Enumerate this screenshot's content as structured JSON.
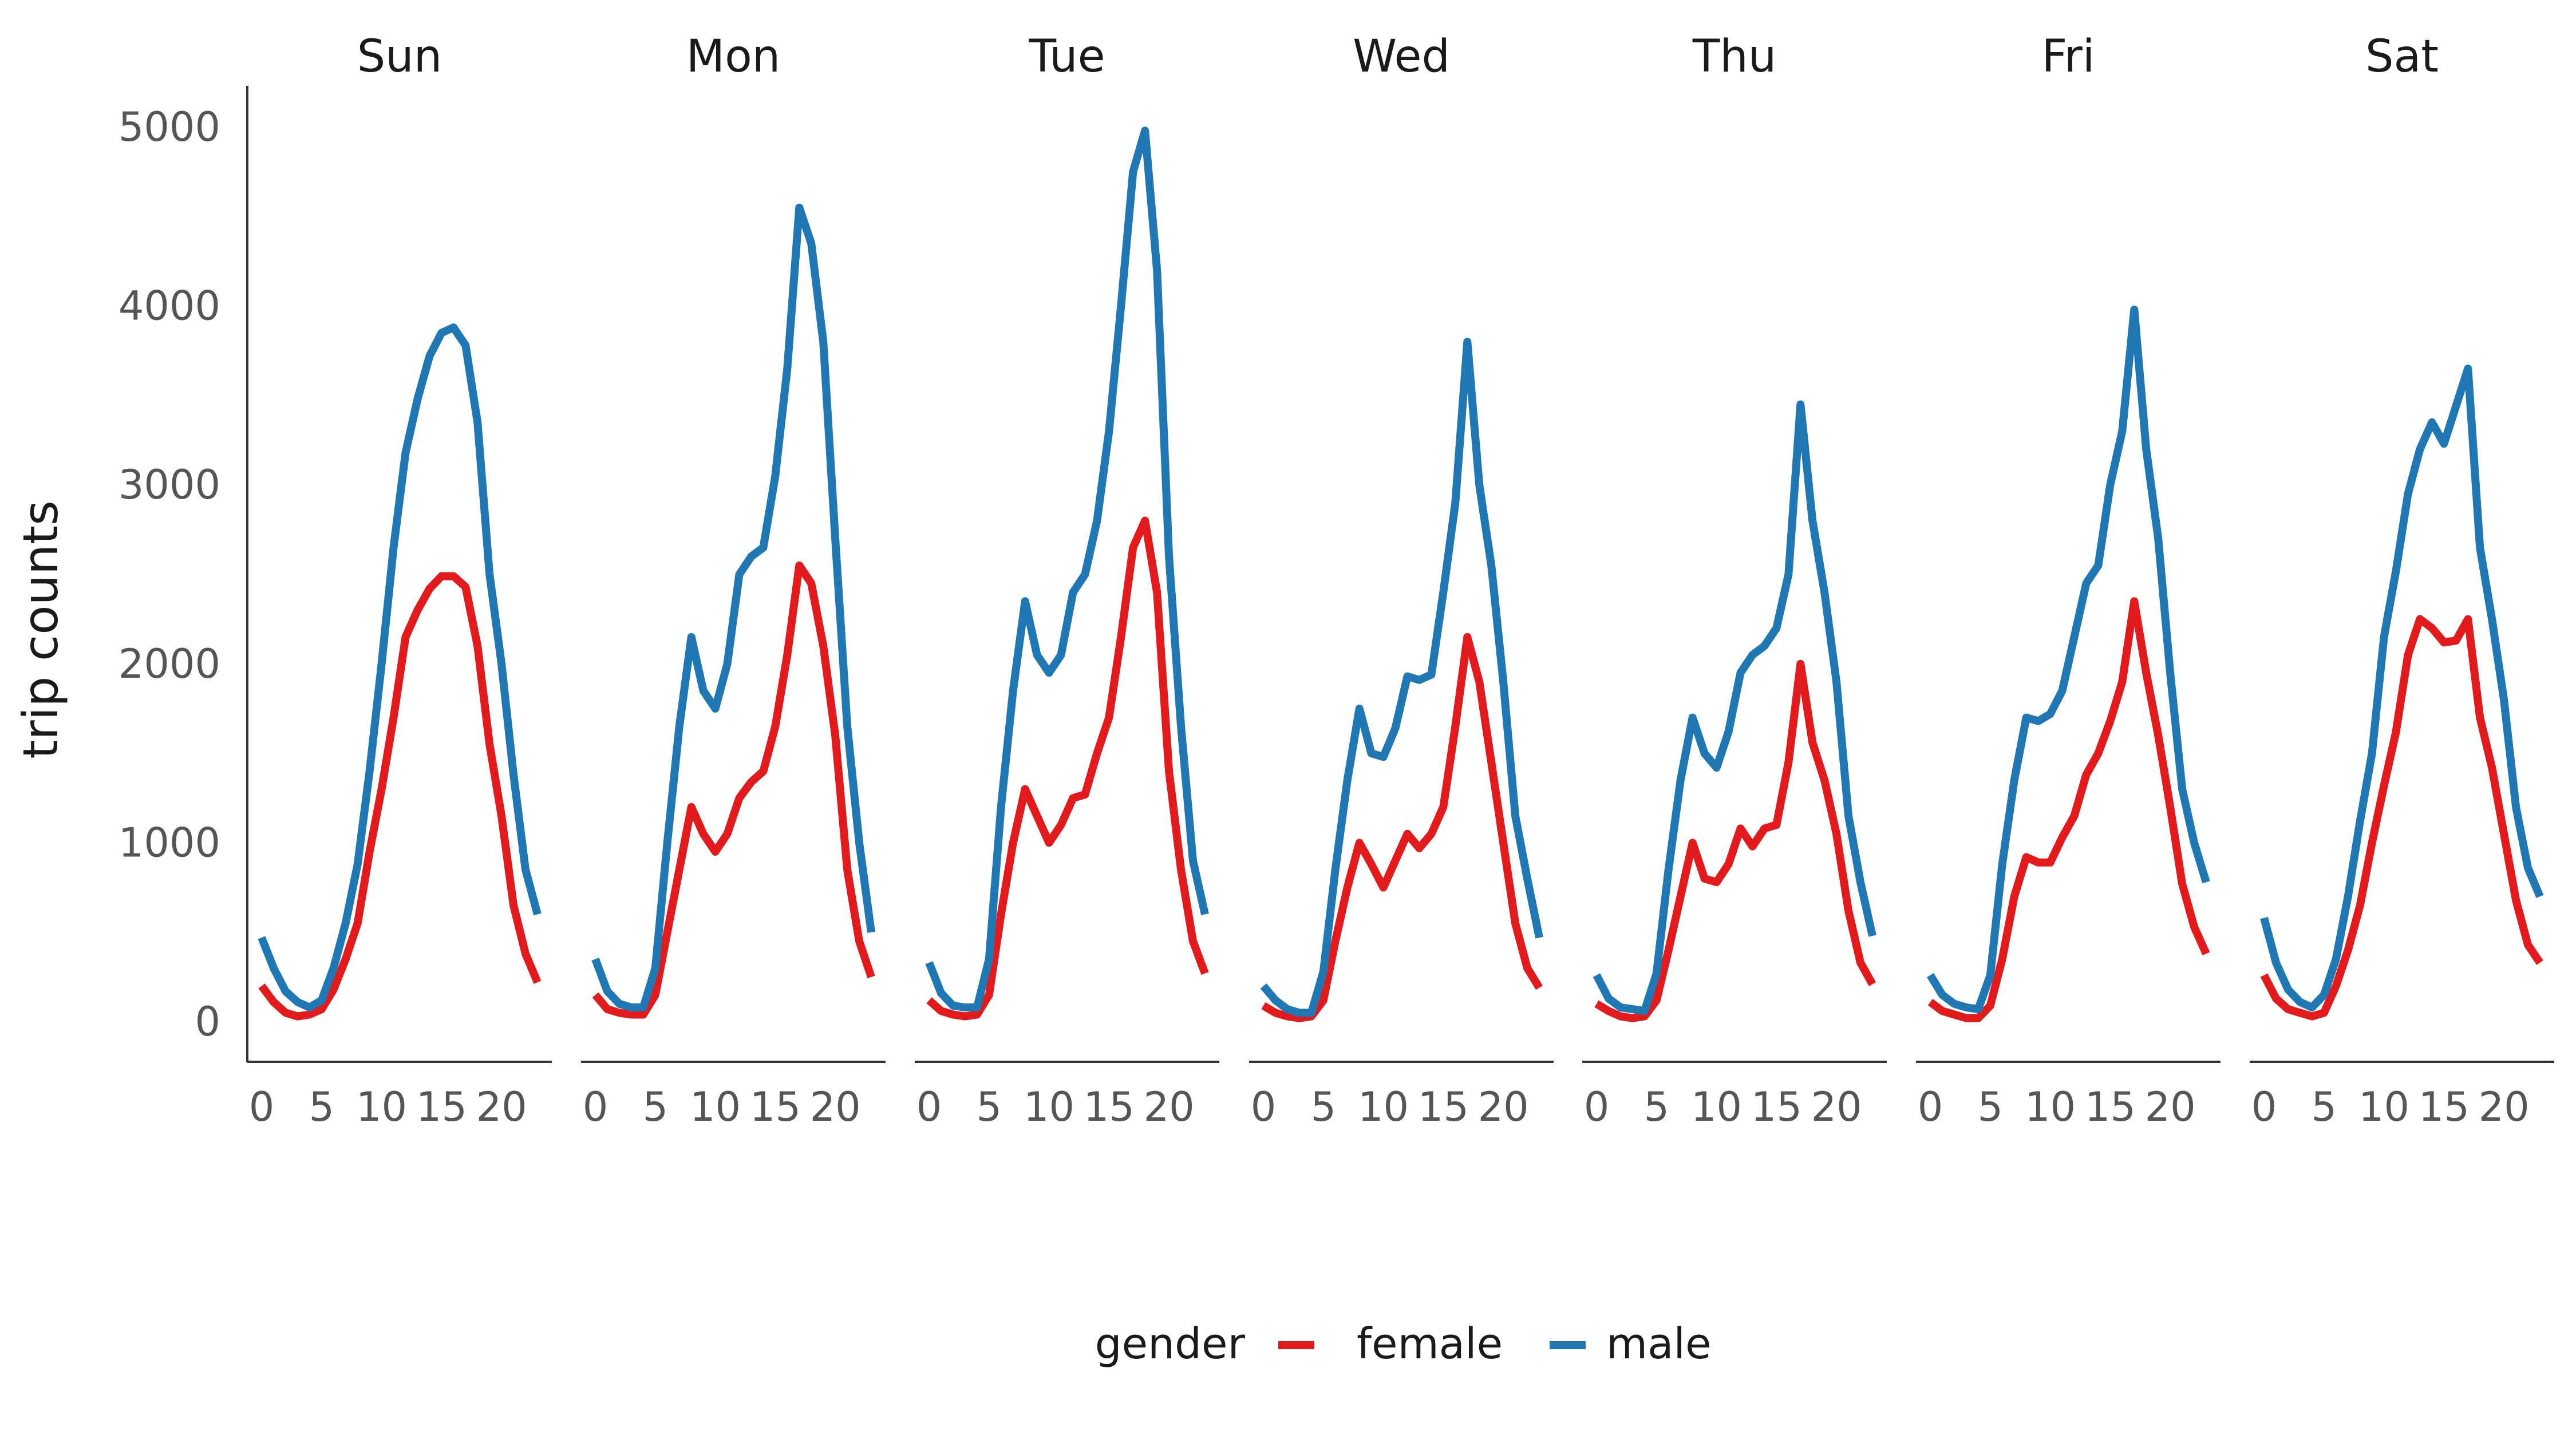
{
  "colors": {
    "female": "#e31a1c",
    "male": "#1f78b4"
  },
  "legend": {
    "title": "gender",
    "placement": "bottom"
  },
  "chart_data": {
    "type": "line",
    "ylabel": "trip counts",
    "ylim": [
      0,
      5000
    ],
    "y_ticks": [
      "0",
      "1000",
      "2000",
      "3000",
      "4000",
      "5000"
    ],
    "y_tick_values": [
      0,
      1000,
      2000,
      3000,
      4000,
      5000
    ],
    "x_ticks": [
      "0",
      "5",
      "10",
      "15",
      "20"
    ],
    "x_tick_values": [
      0,
      5,
      10,
      15,
      20
    ],
    "xlim": [
      0,
      23
    ],
    "grid": false,
    "x": [
      0,
      1,
      2,
      3,
      4,
      5,
      6,
      7,
      8,
      9,
      10,
      11,
      12,
      13,
      14,
      15,
      16,
      17,
      18,
      19,
      20,
      21,
      22,
      23
    ],
    "panels": [
      {
        "label": "Sun",
        "series": [
          {
            "name": "female",
            "values": [
              200,
              110,
              50,
              30,
              40,
              70,
              180,
              350,
              550,
              950,
              1300,
              1700,
              2150,
              2300,
              2420,
              2490,
              2490,
              2430,
              2100,
              1550,
              1150,
              650,
              380,
              220
            ]
          },
          {
            "name": "male",
            "values": [
              470,
              300,
              170,
              110,
              80,
              120,
              300,
              550,
              880,
              1400,
              2000,
              2650,
              3180,
              3480,
              3720,
              3850,
              3880,
              3780,
              3350,
              2500,
              2000,
              1380,
              850,
              600
            ]
          }
        ]
      },
      {
        "label": "Mon",
        "series": [
          {
            "name": "female",
            "values": [
              150,
              70,
              50,
              40,
              40,
              150,
              500,
              850,
              1200,
              1050,
              950,
              1050,
              1250,
              1340,
              1400,
              1650,
              2050,
              2550,
              2450,
              2100,
              1600,
              850,
              450,
              250
            ]
          },
          {
            "name": "male",
            "values": [
              350,
              170,
              100,
              80,
              80,
              300,
              1000,
              1650,
              2150,
              1850,
              1750,
              2000,
              2500,
              2600,
              2650,
              3050,
              3650,
              4550,
              4350,
              3800,
              2700,
              1650,
              1000,
              500
            ]
          }
        ]
      },
      {
        "label": "Tue",
        "series": [
          {
            "name": "female",
            "values": [
              120,
              60,
              40,
              30,
              40,
              150,
              600,
              1000,
              1300,
              1150,
              1000,
              1100,
              1250,
              1270,
              1500,
              1700,
              2150,
              2650,
              2800,
              2400,
              1400,
              850,
              450,
              270
            ]
          },
          {
            "name": "male",
            "values": [
              330,
              160,
              90,
              80,
              80,
              350,
              1200,
              1850,
              2350,
              2050,
              1950,
              2050,
              2400,
              2500,
              2800,
              3300,
              4000,
              4750,
              4980,
              4200,
              2600,
              1650,
              900,
              600
            ]
          }
        ]
      },
      {
        "label": "Wed",
        "series": [
          {
            "name": "female",
            "values": [
              90,
              50,
              30,
              20,
              30,
              120,
              450,
              750,
              1000,
              880,
              750,
              900,
              1050,
              970,
              1050,
              1200,
              1650,
              2150,
              1900,
              1450,
              1000,
              550,
              300,
              190
            ]
          },
          {
            "name": "male",
            "values": [
              200,
              120,
              70,
              50,
              50,
              280,
              850,
              1350,
              1750,
              1500,
              1480,
              1640,
              1930,
              1910,
              1940,
              2400,
              2900,
              3800,
              3000,
              2550,
              1900,
              1150,
              800,
              470
            ]
          }
        ]
      },
      {
        "label": "Thu",
        "series": [
          {
            "name": "female",
            "values": [
              100,
              60,
              30,
              20,
              30,
              120,
              400,
              700,
              1000,
              800,
              780,
              880,
              1080,
              980,
              1080,
              1100,
              1450,
              2000,
              1560,
              1350,
              1050,
              620,
              330,
              210
            ]
          },
          {
            "name": "male",
            "values": [
              260,
              130,
              80,
              70,
              60,
              270,
              850,
              1350,
              1700,
              1500,
              1420,
              1620,
              1950,
              2050,
              2100,
              2200,
              2500,
              3450,
              2800,
              2400,
              1900,
              1150,
              780,
              480
            ]
          }
        ]
      },
      {
        "label": "Fri",
        "series": [
          {
            "name": "female",
            "values": [
              110,
              60,
              40,
              20,
              20,
              90,
              350,
              700,
              920,
              890,
              890,
              1030,
              1150,
              1380,
              1500,
              1680,
              1900,
              2350,
              1950,
              1600,
              1200,
              770,
              530,
              380
            ]
          },
          {
            "name": "male",
            "values": [
              260,
              150,
              100,
              80,
              70,
              260,
              880,
              1350,
              1700,
              1680,
              1720,
              1850,
              2150,
              2450,
              2550,
              3000,
              3300,
              3980,
              3200,
              2700,
              1950,
              1300,
              1000,
              780
            ]
          }
        ]
      },
      {
        "label": "Sat",
        "series": [
          {
            "name": "female",
            "values": [
              260,
              130,
              70,
              50,
              30,
              50,
              200,
              400,
              650,
              1000,
              1320,
              1620,
              2050,
              2250,
              2200,
              2120,
              2130,
              2250,
              1700,
              1420,
              1050,
              680,
              430,
              330
            ]
          },
          {
            "name": "male",
            "values": [
              580,
              330,
              180,
              110,
              80,
              150,
              350,
              700,
              1120,
              1500,
              2150,
              2520,
              2950,
              3200,
              3350,
              3230,
              3440,
              3650,
              2650,
              2250,
              1800,
              1200,
              860,
              700
            ]
          }
        ]
      }
    ]
  }
}
